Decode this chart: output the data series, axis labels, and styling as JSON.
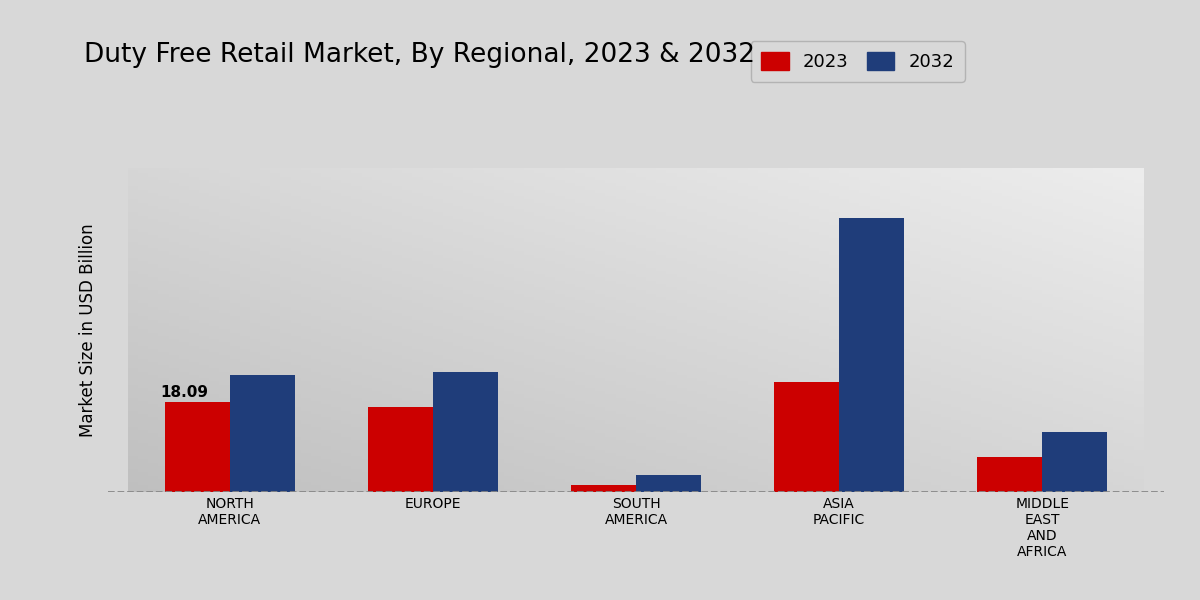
{
  "title": "Duty Free Retail Market, By Regional, 2023 & 2032",
  "categories": [
    "NORTH\nAMERICA",
    "EUROPE",
    "SOUTH\nAMERICA",
    "ASIA\nPACIFIC",
    "MIDDLE\nEAST\nAND\nAFRICA"
  ],
  "values_2023": [
    18.09,
    17.0,
    1.5,
    22.0,
    7.0
  ],
  "values_2032": [
    23.5,
    24.0,
    3.5,
    55.0,
    12.0
  ],
  "color_2023": "#cc0000",
  "color_2032": "#1f3d7a",
  "label_2023": "2023",
  "label_2032": "2032",
  "annotation_value": "18.09",
  "annotation_index": 0,
  "ylabel": "Market Size in USD Billion",
  "bar_width": 0.32,
  "ylim": [
    0,
    65
  ],
  "title_fontsize": 19,
  "axis_label_fontsize": 12,
  "tick_fontsize": 10,
  "legend_fontsize": 13,
  "bg_light": "#e8e8e8",
  "bg_dark": "#c0c0c0"
}
